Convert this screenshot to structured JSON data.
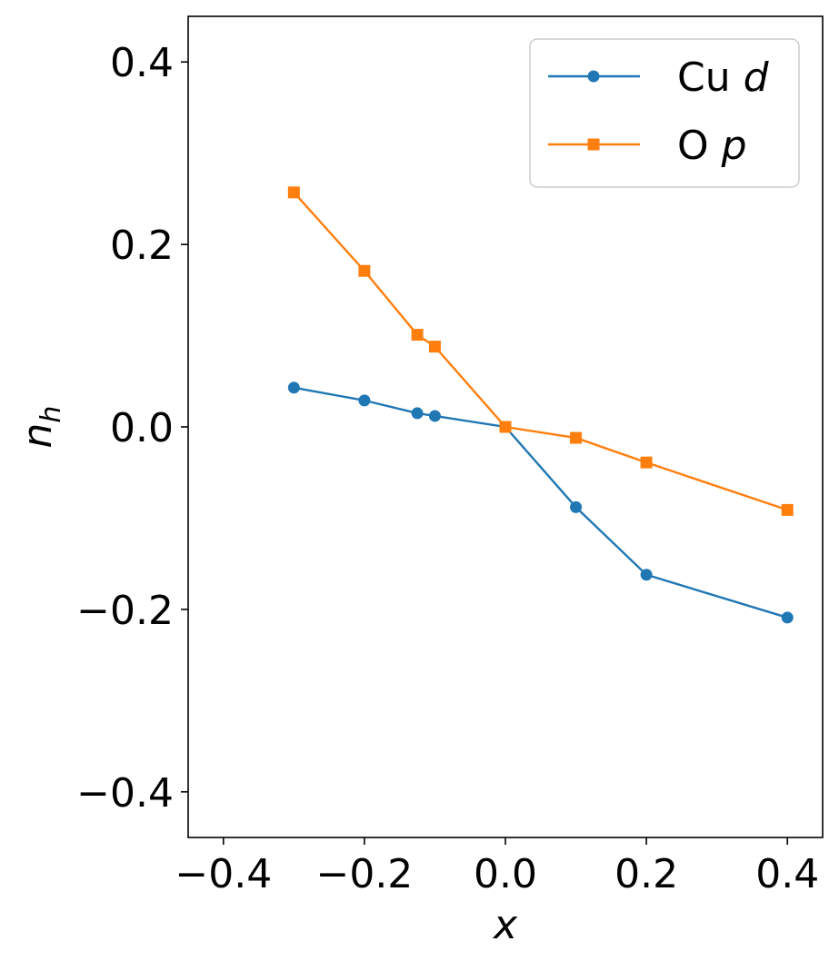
{
  "chart_data": {
    "type": "line",
    "title": "",
    "xlabel": "x",
    "ylabel": "n",
    "ylabel_sub": "h",
    "xlim": [
      -0.45,
      0.45
    ],
    "ylim": [
      -0.45,
      0.45
    ],
    "xticks": [
      -0.4,
      -0.2,
      0.0,
      0.2,
      0.4
    ],
    "yticks": [
      -0.4,
      -0.2,
      0.0,
      0.2,
      0.4
    ],
    "xtick_labels": [
      "−0.4",
      "−0.2",
      "0.0",
      "0.2",
      "0.4"
    ],
    "ytick_labels": [
      "−0.4",
      "−0.2",
      "0.0",
      "0.2",
      "0.4"
    ],
    "grid": false,
    "legend_position": "top-right",
    "series": [
      {
        "name": "Cu d",
        "label_main": "Cu ",
        "label_italic": "d",
        "color": "#1f77b4",
        "marker": "circle",
        "x": [
          -0.3,
          -0.2,
          -0.125,
          -0.1,
          0.0,
          0.1,
          0.2,
          0.4
        ],
        "y": [
          0.043,
          0.029,
          0.015,
          0.012,
          0.0,
          -0.088,
          -0.162,
          -0.209
        ]
      },
      {
        "name": "O p",
        "label_main": "O ",
        "label_italic": "p",
        "color": "#ff7f0e",
        "marker": "square",
        "x": [
          -0.3,
          -0.2,
          -0.125,
          -0.1,
          0.0,
          0.1,
          0.2,
          0.4
        ],
        "y": [
          0.257,
          0.171,
          0.101,
          0.088,
          0.0,
          -0.012,
          -0.039,
          -0.091
        ]
      }
    ]
  }
}
